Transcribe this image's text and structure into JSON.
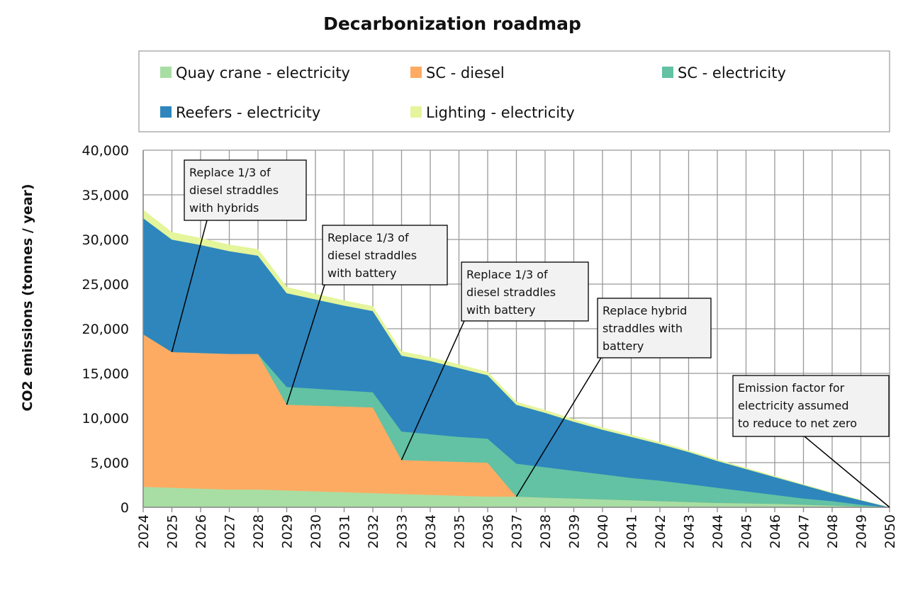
{
  "chart_data": {
    "type": "area",
    "stacked": true,
    "title": "Decarbonization roadmap",
    "xlabel": "",
    "ylabel": "CO2 emissions (tonnes / year)",
    "ylim": [
      0,
      40000
    ],
    "yticks": [
      0,
      5000,
      10000,
      15000,
      20000,
      25000,
      30000,
      35000,
      40000
    ],
    "ytick_labels": [
      "0",
      "5,000",
      "10,000",
      "15,000",
      "20,000",
      "25,000",
      "30,000",
      "35,000",
      "40,000"
    ],
    "grid": true,
    "legend_position": "top",
    "x": [
      2024,
      2025,
      2026,
      2027,
      2028,
      2029,
      2030,
      2031,
      2032,
      2033,
      2034,
      2035,
      2036,
      2037,
      2038,
      2039,
      2040,
      2041,
      2042,
      2043,
      2044,
      2045,
      2046,
      2047,
      2048,
      2049,
      2050
    ],
    "series": [
      {
        "name": "Quay crane - electricity",
        "color": "#a8dea4",
        "values": [
          2300,
          2200,
          2100,
          2000,
          2000,
          1900,
          1800,
          1700,
          1600,
          1500,
          1400,
          1300,
          1200,
          1200,
          1100,
          1000,
          900,
          800,
          700,
          600,
          500,
          450,
          400,
          300,
          200,
          100,
          0
        ]
      },
      {
        "name": "SC - diesel",
        "color": "#fdab63",
        "values": [
          17100,
          15200,
          15200,
          15200,
          15200,
          9600,
          9600,
          9600,
          9600,
          3800,
          3800,
          3800,
          3800,
          0,
          0,
          0,
          0,
          0,
          0,
          0,
          0,
          0,
          0,
          0,
          0,
          0,
          0
        ]
      },
      {
        "name": "SC - electricity",
        "color": "#62c2a3",
        "values": [
          0,
          0,
          0,
          0,
          0,
          2000,
          1900,
          1800,
          1700,
          3200,
          3000,
          2800,
          2700,
          3700,
          3400,
          3100,
          2800,
          2500,
          2300,
          2000,
          1700,
          1350,
          1000,
          700,
          500,
          200,
          0
        ]
      },
      {
        "name": "Reefers - electricity",
        "color": "#2e86bd",
        "values": [
          13000,
          12600,
          12100,
          11500,
          11000,
          10500,
          10000,
          9500,
          9100,
          8500,
          8200,
          7700,
          7100,
          6600,
          6100,
          5500,
          5000,
          4600,
          4100,
          3600,
          3000,
          2500,
          2000,
          1500,
          900,
          500,
          0
        ]
      },
      {
        "name": "Lighting - electricity",
        "color": "#e4f59b",
        "values": [
          900,
          800,
          750,
          700,
          700,
          650,
          600,
          550,
          500,
          450,
          400,
          380,
          350,
          300,
          280,
          250,
          220,
          200,
          180,
          150,
          130,
          100,
          80,
          60,
          40,
          20,
          0
        ]
      }
    ],
    "annotations": [
      {
        "lines": [
          "Replace 1/3 of",
          "diesel straddles",
          "with hybrids"
        ],
        "x": 2025,
        "y": 17400
      },
      {
        "lines": [
          "Replace 1/3 of",
          "diesel straddles",
          "with battery"
        ],
        "x": 2029,
        "y": 11500
      },
      {
        "lines": [
          "Replace 1/3 of",
          "diesel straddles",
          "with battery"
        ],
        "x": 2033,
        "y": 5300
      },
      {
        "lines": [
          "Replace hybrid",
          "straddles with",
          "battery"
        ],
        "x": 2037,
        "y": 1200
      },
      {
        "lines": [
          "Emission factor for",
          "electricity assumed",
          "to reduce to net zero"
        ],
        "x": 2050,
        "y": 0
      }
    ]
  }
}
